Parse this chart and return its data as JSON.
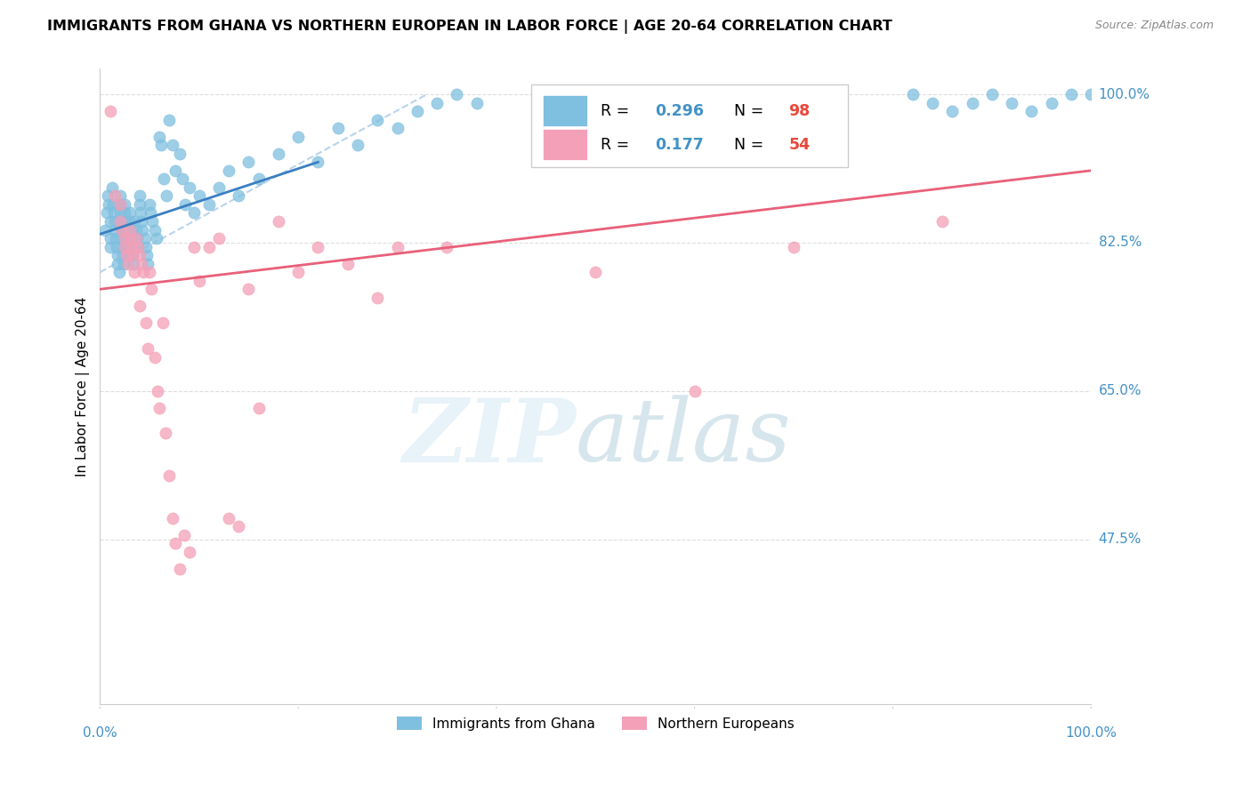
{
  "title": "IMMIGRANTS FROM GHANA VS NORTHERN EUROPEAN IN LABOR FORCE | AGE 20-64 CORRELATION CHART",
  "source": "Source: ZipAtlas.com",
  "ylabel": "In Labor Force | Age 20-64",
  "ytick_labels": [
    "100.0%",
    "82.5%",
    "65.0%",
    "47.5%"
  ],
  "ytick_values": [
    1.0,
    0.825,
    0.65,
    0.475
  ],
  "xtick_labels": [
    "0.0%",
    "100.0%"
  ],
  "xlim": [
    0.0,
    1.0
  ],
  "ylim": [
    0.28,
    1.03
  ],
  "ghana_color": "#7fbfdf",
  "northern_color": "#f4a0b8",
  "ghana_R": 0.296,
  "ghana_N": 98,
  "northern_R": 0.177,
  "northern_N": 54,
  "ghana_line_color": "#3a7fc1",
  "northern_line_color": "#e8607a",
  "dashed_line_color": "#a8c8e8",
  "legend_ghana_label": "Immigrants from Ghana",
  "legend_northern_label": "Northern Europeans",
  "ghana_points_x": [
    0.005,
    0.007,
    0.008,
    0.009,
    0.01,
    0.01,
    0.01,
    0.012,
    0.013,
    0.014,
    0.015,
    0.015,
    0.016,
    0.017,
    0.018,
    0.018,
    0.019,
    0.02,
    0.02,
    0.02,
    0.021,
    0.022,
    0.022,
    0.023,
    0.023,
    0.024,
    0.025,
    0.025,
    0.026,
    0.027,
    0.027,
    0.028,
    0.029,
    0.03,
    0.03,
    0.031,
    0.032,
    0.033,
    0.033,
    0.034,
    0.035,
    0.036,
    0.037,
    0.038,
    0.04,
    0.04,
    0.041,
    0.042,
    0.043,
    0.045,
    0.046,
    0.047,
    0.048,
    0.05,
    0.051,
    0.053,
    0.055,
    0.057,
    0.06,
    0.062,
    0.064,
    0.067,
    0.07,
    0.073,
    0.076,
    0.08,
    0.083,
    0.086,
    0.09,
    0.095,
    0.1,
    0.11,
    0.12,
    0.13,
    0.14,
    0.15,
    0.16,
    0.18,
    0.2,
    0.22,
    0.24,
    0.26,
    0.28,
    0.3,
    0.32,
    0.34,
    0.36,
    0.38,
    0.82,
    0.84,
    0.86,
    0.88,
    0.9,
    0.92,
    0.94,
    0.96,
    0.98,
    1.0
  ],
  "ghana_points_y": [
    0.84,
    0.86,
    0.88,
    0.87,
    0.85,
    0.83,
    0.82,
    0.89,
    0.87,
    0.86,
    0.85,
    0.84,
    0.83,
    0.82,
    0.81,
    0.8,
    0.79,
    0.88,
    0.87,
    0.86,
    0.85,
    0.84,
    0.83,
    0.82,
    0.81,
    0.8,
    0.87,
    0.86,
    0.85,
    0.84,
    0.83,
    0.82,
    0.81,
    0.86,
    0.85,
    0.84,
    0.83,
    0.82,
    0.81,
    0.8,
    0.85,
    0.84,
    0.83,
    0.82,
    0.88,
    0.87,
    0.86,
    0.85,
    0.84,
    0.83,
    0.82,
    0.81,
    0.8,
    0.87,
    0.86,
    0.85,
    0.84,
    0.83,
    0.95,
    0.94,
    0.9,
    0.88,
    0.97,
    0.94,
    0.91,
    0.93,
    0.9,
    0.87,
    0.89,
    0.86,
    0.88,
    0.87,
    0.89,
    0.91,
    0.88,
    0.92,
    0.9,
    0.93,
    0.95,
    0.92,
    0.96,
    0.94,
    0.97,
    0.96,
    0.98,
    0.99,
    1.0,
    0.99,
    1.0,
    0.99,
    0.98,
    0.99,
    1.0,
    0.99,
    0.98,
    0.99,
    1.0,
    1.0
  ],
  "northern_points_x": [
    0.01,
    0.015,
    0.02,
    0.02,
    0.022,
    0.025,
    0.025,
    0.027,
    0.028,
    0.03,
    0.03,
    0.032,
    0.033,
    0.035,
    0.036,
    0.038,
    0.04,
    0.04,
    0.042,
    0.044,
    0.046,
    0.048,
    0.05,
    0.052,
    0.055,
    0.058,
    0.06,
    0.063,
    0.066,
    0.07,
    0.073,
    0.076,
    0.08,
    0.085,
    0.09,
    0.095,
    0.1,
    0.11,
    0.12,
    0.13,
    0.14,
    0.15,
    0.16,
    0.18,
    0.2,
    0.22,
    0.25,
    0.28,
    0.3,
    0.35,
    0.5,
    0.6,
    0.7,
    0.85
  ],
  "northern_points_y": [
    0.98,
    0.88,
    0.87,
    0.85,
    0.84,
    0.83,
    0.82,
    0.81,
    0.8,
    0.84,
    0.83,
    0.82,
    0.81,
    0.79,
    0.83,
    0.82,
    0.81,
    0.75,
    0.8,
    0.79,
    0.73,
    0.7,
    0.79,
    0.77,
    0.69,
    0.65,
    0.63,
    0.73,
    0.6,
    0.55,
    0.5,
    0.47,
    0.44,
    0.48,
    0.46,
    0.82,
    0.78,
    0.82,
    0.83,
    0.5,
    0.49,
    0.77,
    0.63,
    0.85,
    0.79,
    0.82,
    0.8,
    0.76,
    0.82,
    0.82,
    0.79,
    0.65,
    0.82,
    0.85
  ]
}
